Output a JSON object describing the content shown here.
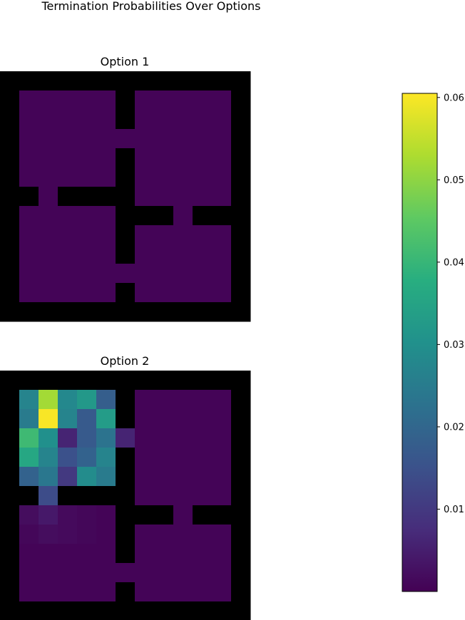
{
  "title": "Termination Probabilities Over Options",
  "chart_data": {
    "type": "heatmap",
    "title": "Termination Probabilities Over Options",
    "grid_size": [
      13,
      13
    ],
    "wall_color": "#000000",
    "colormap": "viridis",
    "vmin": 0.0,
    "vmax": 0.0605,
    "colorbar": {
      "ticks": [
        0.01,
        0.02,
        0.03,
        0.04,
        0.05,
        0.06
      ],
      "tick_labels": [
        "0.01",
        "0.02",
        "0.03",
        "0.04",
        "0.05",
        "0.06"
      ],
      "location": "right"
    },
    "walls": [
      "1111111111111",
      "1000001000001",
      "1000001000001",
      "1000000000001",
      "1000001000001",
      "1000001000001",
      "1101111000001",
      "1000001110111",
      "1000001000001",
      "1000001000001",
      "1000000000001",
      "1000001000001",
      "1111111111111"
    ],
    "panels": [
      {
        "title": "Option 1",
        "default_value": 0.0005,
        "cells": []
      },
      {
        "title": "Option 2",
        "default_value": 0.0005,
        "cells": [
          {
            "row": 1,
            "col": 1,
            "value": 0.027
          },
          {
            "row": 1,
            "col": 2,
            "value": 0.052
          },
          {
            "row": 1,
            "col": 3,
            "value": 0.028
          },
          {
            "row": 1,
            "col": 4,
            "value": 0.032
          },
          {
            "row": 1,
            "col": 5,
            "value": 0.018
          },
          {
            "row": 2,
            "col": 1,
            "value": 0.025
          },
          {
            "row": 2,
            "col": 2,
            "value": 0.06
          },
          {
            "row": 2,
            "col": 3,
            "value": 0.027
          },
          {
            "row": 2,
            "col": 4,
            "value": 0.017
          },
          {
            "row": 2,
            "col": 5,
            "value": 0.033
          },
          {
            "row": 3,
            "col": 1,
            "value": 0.041
          },
          {
            "row": 3,
            "col": 2,
            "value": 0.03
          },
          {
            "row": 3,
            "col": 3,
            "value": 0.006
          },
          {
            "row": 3,
            "col": 4,
            "value": 0.017
          },
          {
            "row": 3,
            "col": 5,
            "value": 0.023
          },
          {
            "row": 3,
            "col": 6,
            "value": 0.006
          },
          {
            "row": 4,
            "col": 1,
            "value": 0.036
          },
          {
            "row": 4,
            "col": 2,
            "value": 0.027
          },
          {
            "row": 4,
            "col": 3,
            "value": 0.015
          },
          {
            "row": 4,
            "col": 4,
            "value": 0.019
          },
          {
            "row": 4,
            "col": 5,
            "value": 0.027
          },
          {
            "row": 5,
            "col": 1,
            "value": 0.019
          },
          {
            "row": 5,
            "col": 2,
            "value": 0.024
          },
          {
            "row": 5,
            "col": 3,
            "value": 0.01
          },
          {
            "row": 5,
            "col": 4,
            "value": 0.029
          },
          {
            "row": 5,
            "col": 5,
            "value": 0.025
          },
          {
            "row": 6,
            "col": 2,
            "value": 0.014
          },
          {
            "row": 7,
            "col": 1,
            "value": 0.002
          },
          {
            "row": 7,
            "col": 2,
            "value": 0.004
          },
          {
            "row": 7,
            "col": 3,
            "value": 0.0015
          },
          {
            "row": 7,
            "col": 4,
            "value": 0.001
          },
          {
            "row": 8,
            "col": 1,
            "value": 0.001
          },
          {
            "row": 8,
            "col": 2,
            "value": 0.002
          },
          {
            "row": 8,
            "col": 3,
            "value": 0.0015
          },
          {
            "row": 8,
            "col": 4,
            "value": 0.001
          }
        ]
      }
    ]
  }
}
